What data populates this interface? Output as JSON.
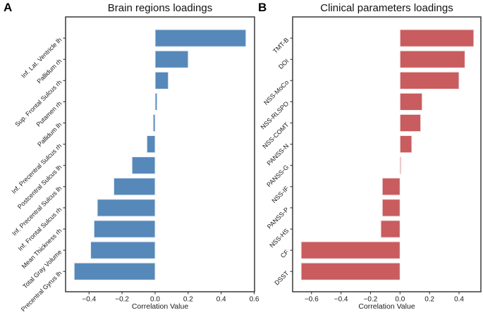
{
  "figure": {
    "background_color": "#ffffff",
    "frame_color": "#454545",
    "tick_color": "#333333",
    "text_color": "#1a1a1a"
  },
  "chart_data": [
    {
      "type": "bar",
      "orientation": "horizontal",
      "panel_letter": "A",
      "title": "Brain regions loadings",
      "xlabel": "Correlation Value",
      "categories": [
        "Inf. Lat. Ventricle lh",
        "Pallidum rh",
        "Sup. Frontal Sulcus rh",
        "Putamen rh",
        "Pallidum lh",
        "Inf. Precentral Sulcus rh",
        "Postcentral Sulcus lh",
        "Inf. Precentral Sulcus lh",
        "Inf. Frontal Sulcus rh",
        "Mean Thickness rh",
        "Total Gray Volume",
        "Precentral Gyrus lh"
      ],
      "values": [
        0.55,
        0.2,
        0.08,
        0.012,
        -0.012,
        -0.05,
        -0.14,
        -0.25,
        -0.35,
        -0.37,
        -0.39,
        -0.49
      ],
      "xlim": [
        -0.542,
        0.602
      ],
      "xtick_values": [
        -0.4,
        -0.2,
        0.0,
        0.2,
        0.4,
        0.6
      ],
      "xtick_labels": [
        "−0.4",
        "−0.2",
        "0.0",
        "0.2",
        "0.4",
        "0.6"
      ],
      "bar_color": "#5688ba",
      "bar_edge_color": "#e9f1f8",
      "grid": false,
      "legend": null
    },
    {
      "type": "bar",
      "orientation": "horizontal",
      "panel_letter": "B",
      "title": "Clinical parameters loadings",
      "xlabel": "Correlation Value",
      "categories": [
        "TMT-B",
        "DOI",
        "NSS-MoCo",
        "NSS-RLSPO",
        "NSS-COMT",
        "PANSS-N",
        "PANSS-G",
        "NSS-IF",
        "PANSS-P",
        "NSS-HS",
        "CF",
        "DSST"
      ],
      "values": [
        0.5,
        0.44,
        0.4,
        0.15,
        0.14,
        0.08,
        0.003,
        -0.12,
        -0.12,
        -0.13,
        -0.67,
        -0.67
      ],
      "xlim": [
        -0.728,
        0.548
      ],
      "xtick_values": [
        -0.6,
        -0.4,
        -0.2,
        0.0,
        0.2,
        0.4
      ],
      "xtick_labels": [
        "−0.6",
        "−0.4",
        "−0.2",
        "0.0",
        "0.2",
        "0.4"
      ],
      "bar_color": "#c85c5e",
      "bar_edge_color": "#f7e6e7",
      "grid": false,
      "legend": null
    }
  ]
}
